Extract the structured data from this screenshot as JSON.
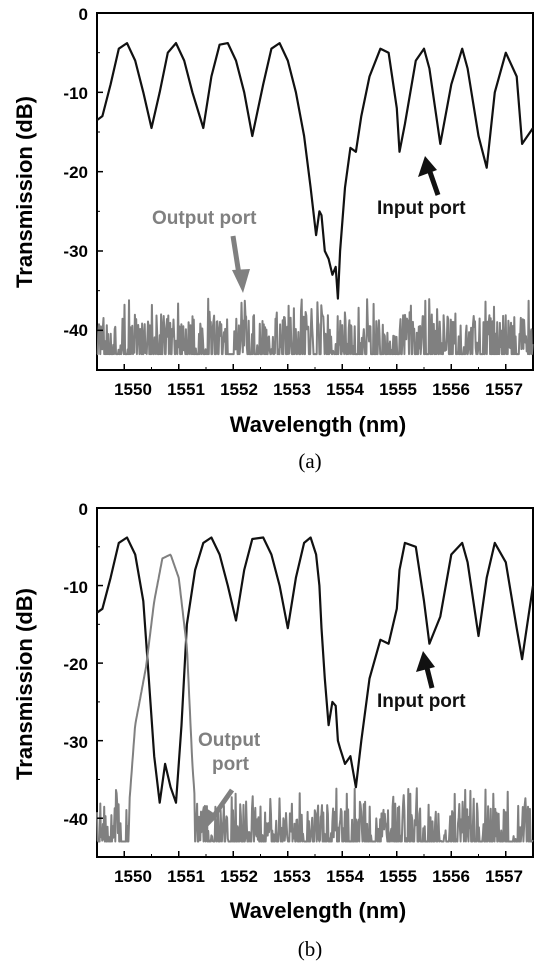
{
  "colors": {
    "input": "#111111",
    "output": "#808080",
    "axis": "#000000"
  },
  "chart_data": [
    {
      "type": "line",
      "caption": "(a)",
      "xlabel": "Wavelength (nm)",
      "ylabel": "Transmission (dB)",
      "xlim": [
        1549.5,
        1557.5
      ],
      "ylim": [
        -45,
        0
      ],
      "x_ticks": [
        "1550",
        "1551",
        "1552",
        "1553",
        "1554",
        "1555",
        "1556",
        "1557"
      ],
      "y_ticks": [
        "0",
        "-10",
        "-20",
        "-30",
        "-40"
      ],
      "annotations": [
        {
          "text": "Output port",
          "color": "#808080"
        },
        {
          "text": "Input port",
          "color": "#111111"
        }
      ],
      "series": [
        {
          "role": "input",
          "x": [
            1549.5,
            1549.6,
            1549.75,
            1549.9,
            1550.05,
            1550.2,
            1550.35,
            1550.5,
            1550.65,
            1550.8,
            1550.95,
            1551.1,
            1551.25,
            1551.45,
            1551.6,
            1551.75,
            1551.9,
            1552.05,
            1552.2,
            1552.35,
            1552.55,
            1552.7,
            1552.85,
            1553.0,
            1553.15,
            1553.3,
            1553.42,
            1553.52,
            1553.58,
            1553.62,
            1553.68,
            1553.75,
            1553.82,
            1553.88,
            1553.92,
            1553.96,
            1554.05,
            1554.15,
            1554.25,
            1554.35,
            1554.5,
            1554.7,
            1554.85,
            1555.0,
            1555.05,
            1555.15,
            1555.35,
            1555.5,
            1555.6,
            1555.8,
            1556.0,
            1556.2,
            1556.3,
            1556.5,
            1556.65,
            1556.8,
            1557.0,
            1557.2,
            1557.3,
            1557.5
          ],
          "y": [
            -13.5,
            -13,
            -9,
            -4.5,
            -3.8,
            -6,
            -10,
            -14.5,
            -10,
            -5,
            -3.8,
            -6,
            -10,
            -14.5,
            -8,
            -4,
            -3.8,
            -6,
            -10,
            -15.5,
            -9,
            -4.5,
            -3.8,
            -6,
            -10,
            -15.5,
            -22,
            -28,
            -25,
            -25.5,
            -30,
            -31,
            -33,
            -32,
            -36,
            -30,
            -22,
            -17,
            -17.5,
            -13,
            -8,
            -4.5,
            -5,
            -12,
            -17.5,
            -14,
            -6,
            -4.5,
            -7,
            -16.5,
            -9,
            -4.5,
            -7,
            -15.5,
            -19.5,
            -10,
            -5,
            -8,
            -16.5,
            -14.5
          ]
        },
        {
          "role": "output",
          "x": [
            1549.5,
            1550.0,
            1550.5,
            1551.0,
            1551.5,
            1552.0,
            1552.5,
            1553.0,
            1553.5,
            1554.0,
            1554.5,
            1555.0,
            1555.5,
            1556.0,
            1556.5,
            1557.0,
            1557.5
          ],
          "y": [
            -43,
            -43,
            -43,
            -43,
            -43,
            -43,
            -43,
            -43,
            -43,
            -43,
            -43,
            -43,
            -43,
            -43,
            -43,
            -43,
            -43
          ],
          "noise_band": [
            -43,
            -38
          ]
        }
      ]
    },
    {
      "type": "line",
      "caption": "(b)",
      "xlabel": "Wavelength (nm)",
      "ylabel": "Transmission (dB)",
      "xlim": [
        1549.5,
        1557.5
      ],
      "ylim": [
        -45,
        0
      ],
      "x_ticks": [
        "1550",
        "1551",
        "1552",
        "1553",
        "1554",
        "1555",
        "1556",
        "1557"
      ],
      "y_ticks": [
        "0",
        "-10",
        "-20",
        "-30",
        "-40"
      ],
      "annotations": [
        {
          "text": "Output",
          "color": "#808080"
        },
        {
          "text": "port",
          "color": "#808080"
        },
        {
          "text": "Input port",
          "color": "#111111"
        }
      ],
      "series": [
        {
          "role": "input",
          "x": [
            1549.5,
            1549.6,
            1549.75,
            1549.9,
            1550.05,
            1550.2,
            1550.35,
            1550.45,
            1550.55,
            1550.65,
            1550.75,
            1550.85,
            1550.95,
            1551.05,
            1551.15,
            1551.3,
            1551.45,
            1551.6,
            1551.75,
            1551.9,
            1552.05,
            1552.2,
            1552.35,
            1552.55,
            1552.7,
            1552.85,
            1553.0,
            1553.15,
            1553.3,
            1553.42,
            1553.52,
            1553.58,
            1553.62,
            1553.68,
            1553.75,
            1553.82,
            1553.88,
            1553.92,
            1553.96,
            1554.05,
            1554.15,
            1554.25,
            1554.35,
            1554.5,
            1554.7,
            1554.85,
            1555.0,
            1555.05,
            1555.15,
            1555.35,
            1555.5,
            1555.6,
            1555.8,
            1556.0,
            1556.2,
            1556.3,
            1556.5,
            1556.65,
            1556.8,
            1557.0,
            1557.2,
            1557.3,
            1557.5
          ],
          "y": [
            -13.5,
            -13,
            -9,
            -4.5,
            -3.8,
            -6,
            -12,
            -22,
            -32,
            -38,
            -33,
            -36,
            -38,
            -28,
            -15,
            -8,
            -4.5,
            -3.8,
            -6,
            -10,
            -14.5,
            -8,
            -4,
            -3.8,
            -6,
            -10,
            -15.5,
            -9,
            -4.5,
            -3.8,
            -6,
            -10,
            -15.5,
            -22,
            -28,
            -25,
            -25.5,
            -30,
            -31,
            -33,
            -32,
            -36,
            -30,
            -22,
            -17,
            -17.5,
            -13,
            -8,
            -4.5,
            -5,
            -12,
            -17.5,
            -14,
            -6,
            -4.5,
            -7,
            -16.5,
            -9,
            -4.5,
            -7,
            -15.5,
            -19.5,
            -10
          ]
        },
        {
          "role": "output",
          "x": [
            1549.5,
            1550.05,
            1550.2,
            1550.4,
            1550.55,
            1550.7,
            1550.85,
            1551.0,
            1551.15,
            1551.25,
            1551.35,
            1552.0,
            1553.0,
            1554.0,
            1555.0,
            1556.0,
            1557.0,
            1557.5
          ],
          "y": [
            -43,
            -42,
            -28,
            -20.5,
            -12,
            -6.5,
            -6,
            -9,
            -18,
            -33,
            -43,
            -43,
            -43,
            -43,
            -43,
            -43,
            -43,
            -43
          ],
          "noise_band": [
            -43,
            -38
          ]
        }
      ]
    }
  ]
}
